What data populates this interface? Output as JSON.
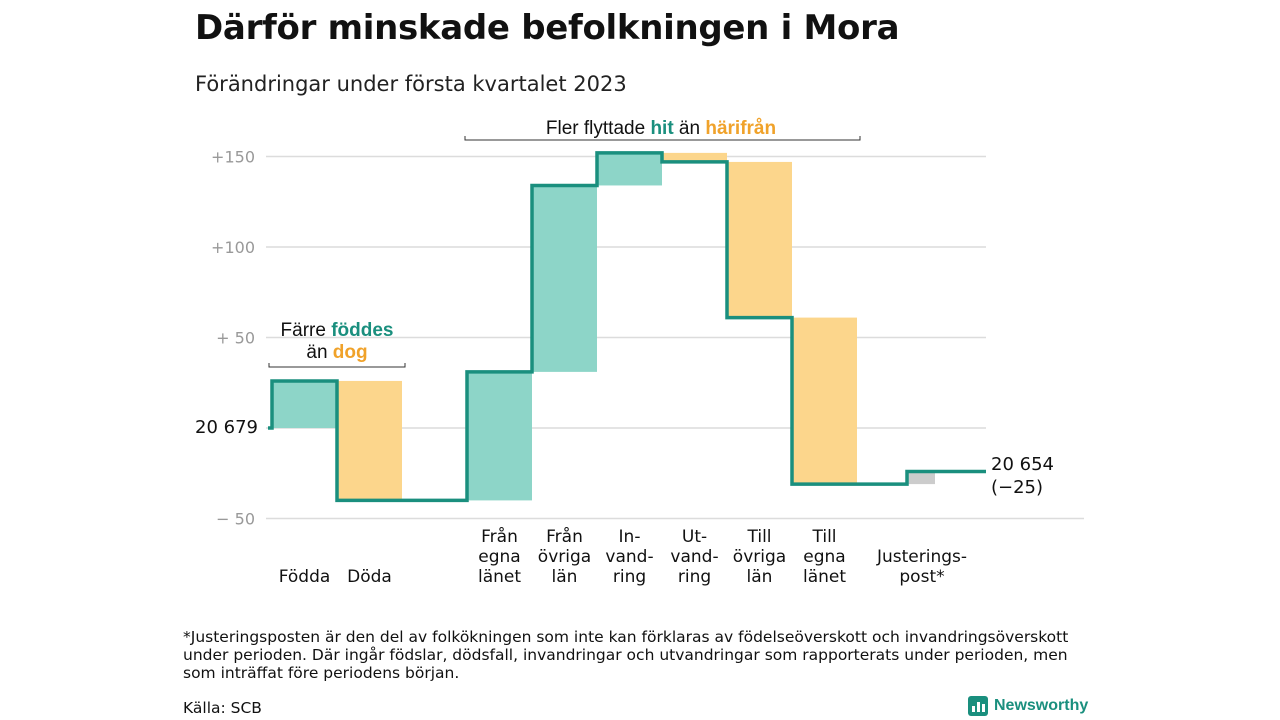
{
  "title": "Därför minskade befolkningen i Mora",
  "subtitle": "Förändringar under första kvartalet 2023",
  "footnote": "*Justeringsposten är den del av folkökningen som inte kan förklaras av födelseöverskott och invandringsöverskott under perioden. Där ingår födslar, dödsfall, invandringar och utvandringar som rapporterats under perioden, men som inträffat före periodens början.",
  "source": "Källa: SCB",
  "brand": "Newsworthy",
  "colors": {
    "positive": "#8dd5c8",
    "negative": "#fcd68c",
    "adjust": "#cccccc",
    "line": "#1a8f7e",
    "grid": "#dcdcdc",
    "orange_text": "#f0a22a"
  },
  "chart_data": {
    "type": "waterfall",
    "start_value": 20679,
    "start_label": "20 679",
    "end_label_value": "20 654",
    "end_label_change": "(−25)",
    "y_offset_range": [
      -50,
      160
    ],
    "y_ticks": [
      {
        "value": 150,
        "label": "+150"
      },
      {
        "value": 100,
        "label": "+100"
      },
      {
        "value": 50,
        "label": "+ 50"
      },
      {
        "value": -50,
        "label": "− 50"
      }
    ],
    "categories": [
      {
        "label": [
          "Födda"
        ],
        "change": 26,
        "kind": "positive"
      },
      {
        "label": [
          "Döda"
        ],
        "change": -66,
        "kind": "negative"
      },
      {
        "label": [
          ""
        ],
        "change": 0,
        "kind": "gap"
      },
      {
        "label": [
          "Från",
          "egna",
          "länet"
        ],
        "change": 71,
        "kind": "positive"
      },
      {
        "label": [
          "Från",
          "övriga",
          "län"
        ],
        "change": 103,
        "kind": "positive"
      },
      {
        "label": [
          "In-",
          "vand-",
          "ring"
        ],
        "change": 18,
        "kind": "positive"
      },
      {
        "label": [
          "Ut-",
          "vand-",
          "ring"
        ],
        "change": -5,
        "kind": "negative"
      },
      {
        "label": [
          "Till",
          "övriga",
          "län"
        ],
        "change": -86,
        "kind": "negative"
      },
      {
        "label": [
          "Till",
          "egna",
          "länet"
        ],
        "change": -92,
        "kind": "negative"
      },
      {
        "label": [
          "Justerings-",
          "post*"
        ],
        "change": 7,
        "kind": "adjust"
      }
    ],
    "annotations": [
      {
        "parts": [
          [
            "Färre ",
            "dark"
          ],
          [
            "föddes",
            "teal"
          ]
        ],
        "parts2": [
          [
            "än ",
            "dark"
          ],
          [
            "dog",
            "orange"
          ]
        ]
      },
      {
        "parts": [
          [
            "Fler flyttade ",
            "dark"
          ],
          [
            "hit",
            "teal"
          ],
          [
            " än ",
            "dark"
          ],
          [
            "härifrån",
            "orange"
          ]
        ]
      }
    ]
  }
}
